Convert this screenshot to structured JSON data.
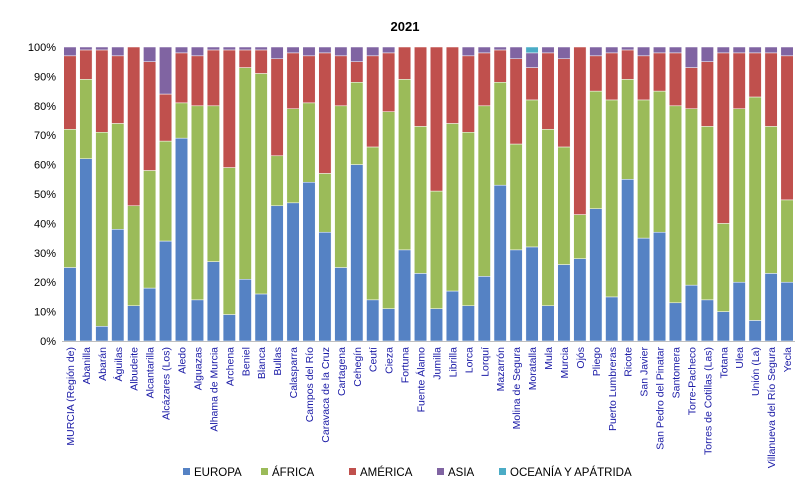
{
  "chart_data": {
    "type": "bar",
    "stacked": true,
    "normalized": true,
    "title": "2021",
    "xlabel": "",
    "ylabel": "",
    "ylim": [
      0,
      100
    ],
    "yticks": [
      "0%",
      "10%",
      "20%",
      "30%",
      "40%",
      "50%",
      "60%",
      "70%",
      "80%",
      "90%",
      "100%"
    ],
    "grid": false,
    "legend_position": "bottom",
    "categories": [
      "MURCIA (Región de)",
      "Abanilla",
      "Abarán",
      "Águilas",
      "Albudeite",
      "Alcantarilla",
      "Alcázares (Los)",
      "Aledo",
      "Alguazas",
      "Alhama de Murcia",
      "Archena",
      "Beniel",
      "Blanca",
      "Bullas",
      "Calasparra",
      "Campos del Río",
      "Caravaca de la Cruz",
      "Cartagena",
      "Cehegín",
      "Ceutí",
      "Cieza",
      "Fortuna",
      "Fuente Álamo",
      "Jumilla",
      "Librilla",
      "Lorca",
      "Lorquí",
      "Mazarrón",
      "Molina de Segura",
      "Moratalla",
      "Mula",
      "Murcia",
      "Ojós",
      "Pliego",
      "Puerto Lumbreras",
      "Ricote",
      "San Javier",
      "San Pedro del Pinatar",
      "Santomera",
      "Torre-Pacheco",
      "Torres de Cotillas (Las)",
      "Totana",
      "Ulea",
      "Unión (La)",
      "Villanueva del Río Segura",
      "Yecla"
    ],
    "series": [
      {
        "name": "EUROPA",
        "color": "#5582c4",
        "values": [
          25,
          62,
          5,
          38,
          12,
          18,
          34,
          69,
          14,
          27,
          9,
          21,
          16,
          46,
          47,
          54,
          37,
          25,
          60,
          14,
          11,
          31,
          23,
          11,
          17,
          12,
          22,
          53,
          31,
          32,
          12,
          26,
          28,
          45,
          15,
          55,
          35,
          37,
          13,
          19,
          14,
          10,
          20,
          7,
          23,
          20
        ]
      },
      {
        "name": "ÁFRICA",
        "color": "#9bbb59",
        "values": [
          47,
          27,
          66,
          36,
          34,
          40,
          34,
          12,
          66,
          53,
          50,
          72,
          75,
          17,
          32,
          27,
          20,
          55,
          28,
          52,
          67,
          58,
          50,
          40,
          57,
          59,
          58,
          35,
          36,
          50,
          60,
          40,
          15,
          40,
          67,
          34,
          47,
          48,
          67,
          60,
          59,
          30,
          59,
          76,
          50,
          28
        ]
      },
      {
        "name": "AMÉRICA",
        "color": "#c0504d",
        "values": [
          25,
          10,
          28,
          23,
          54,
          37,
          16,
          17,
          17,
          19,
          40,
          6,
          8,
          33,
          19,
          16,
          41,
          17,
          7,
          31,
          20,
          11,
          27,
          49,
          26,
          26,
          18,
          11,
          29,
          11,
          26,
          30,
          57,
          12,
          16,
          10,
          15,
          13,
          18,
          14,
          22,
          58,
          19,
          15,
          25,
          49
        ]
      },
      {
        "name": "ASIA",
        "color": "#8064a2",
        "values": [
          3,
          1,
          1,
          3,
          0,
          5,
          16,
          2,
          3,
          1,
          1,
          1,
          1,
          4,
          2,
          3,
          2,
          3,
          5,
          3,
          2,
          0,
          0,
          0,
          0,
          3,
          2,
          1,
          4,
          5,
          2,
          4,
          0,
          3,
          2,
          1,
          3,
          2,
          2,
          7,
          5,
          2,
          2,
          2,
          2,
          3
        ]
      },
      {
        "name": "OCEANÍA Y APÁTRIDA",
        "color": "#4bacc6",
        "values": [
          0,
          0,
          0,
          0,
          0,
          0,
          0,
          0,
          0,
          0,
          0,
          0,
          0,
          0,
          0,
          0,
          0,
          0,
          0,
          0,
          0,
          0,
          0,
          0,
          0,
          0,
          0,
          0,
          0,
          2,
          0,
          0,
          0,
          0,
          0,
          0,
          0,
          0,
          0,
          0,
          0,
          0,
          0,
          0,
          0,
          0
        ]
      }
    ]
  }
}
